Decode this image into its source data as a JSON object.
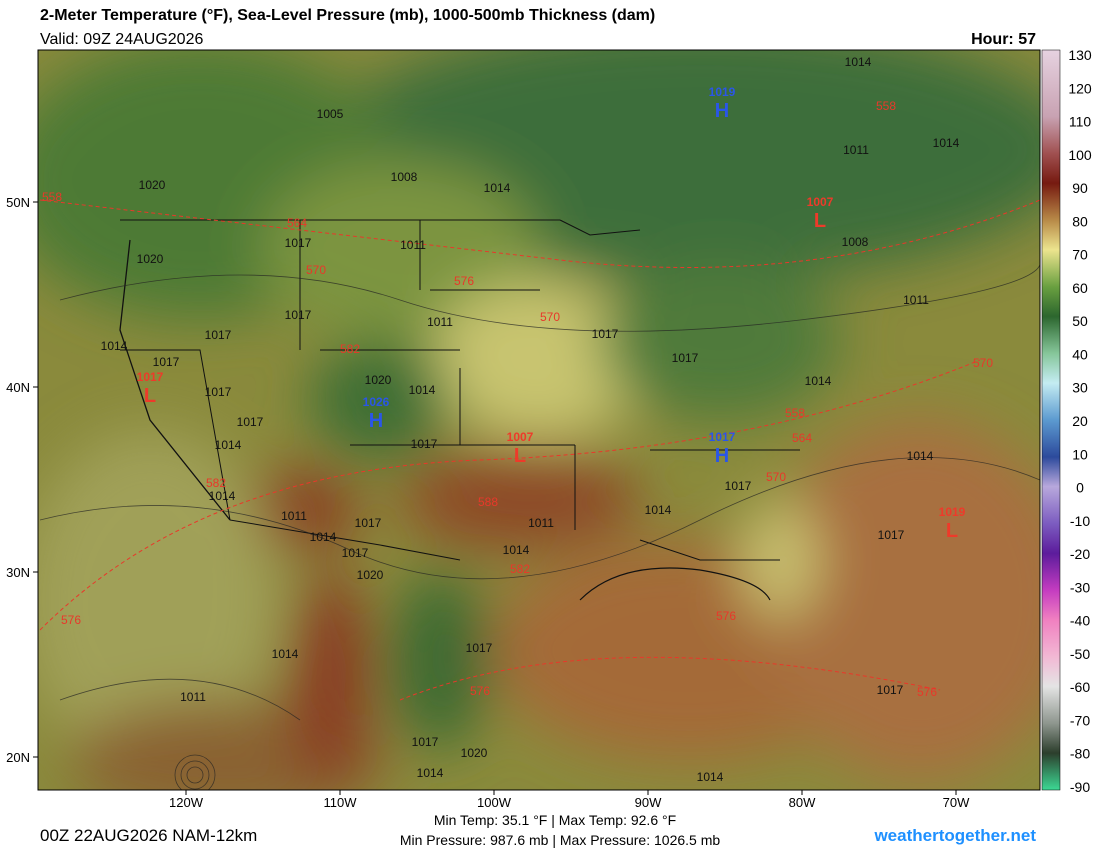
{
  "header": {
    "title": "2-Meter Temperature (°F), Sea-Level Pressure (mb), 1000-500mb Thickness (dam)",
    "valid": "Valid: 09Z 24AUG2026",
    "hour": "Hour: 57"
  },
  "colorbar": {
    "ticks": [
      130,
      120,
      110,
      100,
      90,
      80,
      70,
      60,
      50,
      40,
      30,
      20,
      10,
      0,
      -10,
      -20,
      -30,
      -40,
      -50,
      -60,
      -70,
      -80,
      -90
    ]
  },
  "latitudes": [
    "50N",
    "40N",
    "30N",
    "20N"
  ],
  "longitudes": [
    "120W",
    "110W",
    "100W",
    "90W",
    "80W",
    "70W"
  ],
  "pressure_centers": [
    {
      "symbol": "H",
      "value": 1019
    },
    {
      "symbol": "L",
      "value": 1007
    },
    {
      "symbol": "H",
      "value": 1026
    },
    {
      "symbol": "L",
      "value": 1017
    },
    {
      "symbol": "L",
      "value": 1007
    },
    {
      "symbol": "H",
      "value": 1017
    },
    {
      "symbol": "L",
      "value": 1019
    }
  ],
  "isobar_labels": [
    1014,
    1005,
    1011,
    1014,
    1008,
    1020,
    1014,
    1017,
    1011,
    1008,
    1020,
    1011,
    1017,
    1011,
    1017,
    1017,
    1014,
    1017,
    1017,
    1020,
    1014,
    1017,
    1014,
    1017,
    1014,
    1017,
    1014,
    1017,
    1014,
    1011,
    1014,
    1011,
    1017,
    1014,
    1017,
    1014,
    1017,
    1020,
    1017,
    1014,
    1017,
    1011,
    1017,
    1020,
    1014,
    1014
  ],
  "thickness_labels": [
    558,
    558,
    564,
    570,
    576,
    570,
    582,
    570,
    558,
    564,
    570,
    582,
    588,
    582,
    576,
    576,
    576,
    576
  ],
  "footer": {
    "run": "00Z 22AUG2026 NAM-12km",
    "temp_stats": "Min Temp: 35.1 °F | Max Temp:  92.6 °F",
    "pressure_stats": "Min Pressure: 987.6 mb | Max Pressure: 1026.5 mb",
    "site": "weathertogether.net"
  }
}
